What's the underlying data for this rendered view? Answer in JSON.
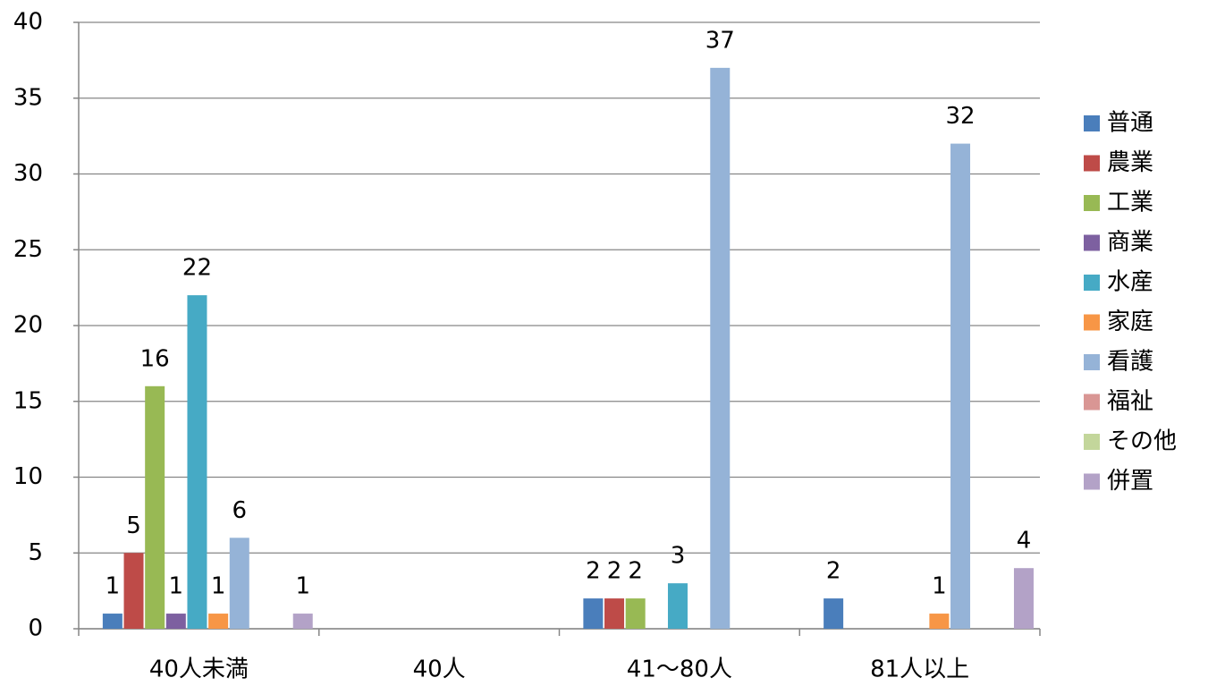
{
  "chart_data": {
    "type": "bar",
    "categories": [
      "40人未満",
      "40人",
      "41〜80人",
      "81人以上"
    ],
    "series": [
      {
        "name": "普通",
        "color": "#4a7ebb",
        "values": [
          1,
          null,
          2,
          2
        ]
      },
      {
        "name": "農業",
        "color": "#be4b48",
        "values": [
          5,
          null,
          2,
          null
        ]
      },
      {
        "name": "工業",
        "color": "#98b954",
        "values": [
          16,
          null,
          2,
          null
        ]
      },
      {
        "name": "商業",
        "color": "#7d60a0",
        "values": [
          1,
          null,
          null,
          null
        ]
      },
      {
        "name": "水産",
        "color": "#46aac5",
        "values": [
          22,
          null,
          3,
          null
        ]
      },
      {
        "name": "家庭",
        "color": "#f79646",
        "values": [
          1,
          null,
          null,
          1
        ]
      },
      {
        "name": "看護",
        "color": "#95b3d7",
        "values": [
          6,
          null,
          37,
          32
        ]
      },
      {
        "name": "福祉",
        "color": "#d99694",
        "values": [
          null,
          null,
          null,
          null
        ]
      },
      {
        "name": "その他",
        "color": "#c3d69b",
        "values": [
          null,
          null,
          null,
          null
        ]
      },
      {
        "name": "併置",
        "color": "#b3a2c7",
        "values": [
          1,
          null,
          null,
          4
        ]
      }
    ],
    "ylim": [
      0,
      40
    ],
    "yticks": [
      0,
      5,
      10,
      15,
      20,
      25,
      30,
      35,
      40
    ],
    "grid": true,
    "legend": "right"
  }
}
